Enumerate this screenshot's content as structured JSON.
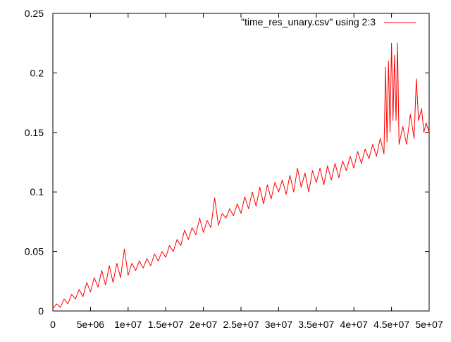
{
  "chart_data": {
    "type": "line",
    "title": "",
    "xlabel": "",
    "ylabel": "",
    "xlim": [
      0,
      50000000
    ],
    "ylim": [
      0,
      0.25
    ],
    "grid": false,
    "legend_position": "top-right",
    "x_ticks": [
      {
        "value": 0,
        "label": "0"
      },
      {
        "value": 5000000,
        "label": "5e+06"
      },
      {
        "value": 10000000,
        "label": "1e+07"
      },
      {
        "value": 15000000,
        "label": "1.5e+07"
      },
      {
        "value": 20000000,
        "label": "2e+07"
      },
      {
        "value": 25000000,
        "label": "2.5e+07"
      },
      {
        "value": 30000000,
        "label": "3e+07"
      },
      {
        "value": 35000000,
        "label": "3.5e+07"
      },
      {
        "value": 40000000,
        "label": "4e+07"
      },
      {
        "value": 45000000,
        "label": "4.5e+07"
      },
      {
        "value": 50000000,
        "label": "5e+07"
      }
    ],
    "y_ticks": [
      {
        "value": 0,
        "label": "0"
      },
      {
        "value": 0.05,
        "label": "0.05"
      },
      {
        "value": 0.1,
        "label": "0.1"
      },
      {
        "value": 0.15,
        "label": "0.15"
      },
      {
        "value": 0.2,
        "label": "0.2"
      },
      {
        "value": 0.25,
        "label": "0.25"
      }
    ],
    "series": [
      {
        "name": "\"time_res_unary.csv\" using 2:3",
        "color": "#ff0000",
        "x": [
          0,
          500000,
          1000000,
          1500000,
          2000000,
          2500000,
          3000000,
          3500000,
          4000000,
          4500000,
          5000000,
          5500000,
          6000000,
          6500000,
          7000000,
          7500000,
          8000000,
          8500000,
          9000000,
          9500000,
          10000000,
          10500000,
          11000000,
          11500000,
          12000000,
          12500000,
          13000000,
          13500000,
          14000000,
          14500000,
          15000000,
          15500000,
          16000000,
          16500000,
          17000000,
          17500000,
          18000000,
          18500000,
          19000000,
          19500000,
          20000000,
          20500000,
          21000000,
          21500000,
          22000000,
          22500000,
          23000000,
          23500000,
          24000000,
          24500000,
          25000000,
          25500000,
          26000000,
          26500000,
          27000000,
          27500000,
          28000000,
          28500000,
          29000000,
          29500000,
          30000000,
          30500000,
          31000000,
          31500000,
          32000000,
          32500000,
          33000000,
          33500000,
          34000000,
          34500000,
          35000000,
          35500000,
          36000000,
          36500000,
          37000000,
          37500000,
          38000000,
          38500000,
          39000000,
          39500000,
          40000000,
          40500000,
          41000000,
          41500000,
          42000000,
          42500000,
          43000000,
          43500000,
          44000000,
          44200000,
          44400000,
          44600000,
          44800000,
          45000000,
          45200000,
          45400000,
          45600000,
          45800000,
          46000000,
          46500000,
          47000000,
          47500000,
          48000000,
          48300000,
          48600000,
          49000000,
          49300000,
          49600000,
          50000000
        ],
        "y": [
          0.002,
          0.006,
          0.003,
          0.01,
          0.006,
          0.014,
          0.01,
          0.018,
          0.012,
          0.024,
          0.016,
          0.028,
          0.02,
          0.034,
          0.022,
          0.038,
          0.024,
          0.04,
          0.028,
          0.052,
          0.03,
          0.04,
          0.034,
          0.042,
          0.036,
          0.044,
          0.038,
          0.048,
          0.042,
          0.05,
          0.045,
          0.055,
          0.05,
          0.06,
          0.055,
          0.068,
          0.06,
          0.07,
          0.064,
          0.078,
          0.066,
          0.076,
          0.07,
          0.095,
          0.072,
          0.082,
          0.078,
          0.086,
          0.08,
          0.09,
          0.082,
          0.096,
          0.086,
          0.1,
          0.088,
          0.104,
          0.09,
          0.106,
          0.094,
          0.108,
          0.1,
          0.11,
          0.098,
          0.114,
          0.1,
          0.12,
          0.104,
          0.116,
          0.1,
          0.118,
          0.108,
          0.12,
          0.106,
          0.122,
          0.11,
          0.124,
          0.112,
          0.126,
          0.118,
          0.13,
          0.12,
          0.134,
          0.124,
          0.136,
          0.128,
          0.14,
          0.13,
          0.145,
          0.132,
          0.205,
          0.142,
          0.21,
          0.15,
          0.225,
          0.16,
          0.215,
          0.16,
          0.225,
          0.14,
          0.155,
          0.14,
          0.165,
          0.145,
          0.195,
          0.16,
          0.17,
          0.15,
          0.158,
          0.15
        ]
      }
    ]
  }
}
